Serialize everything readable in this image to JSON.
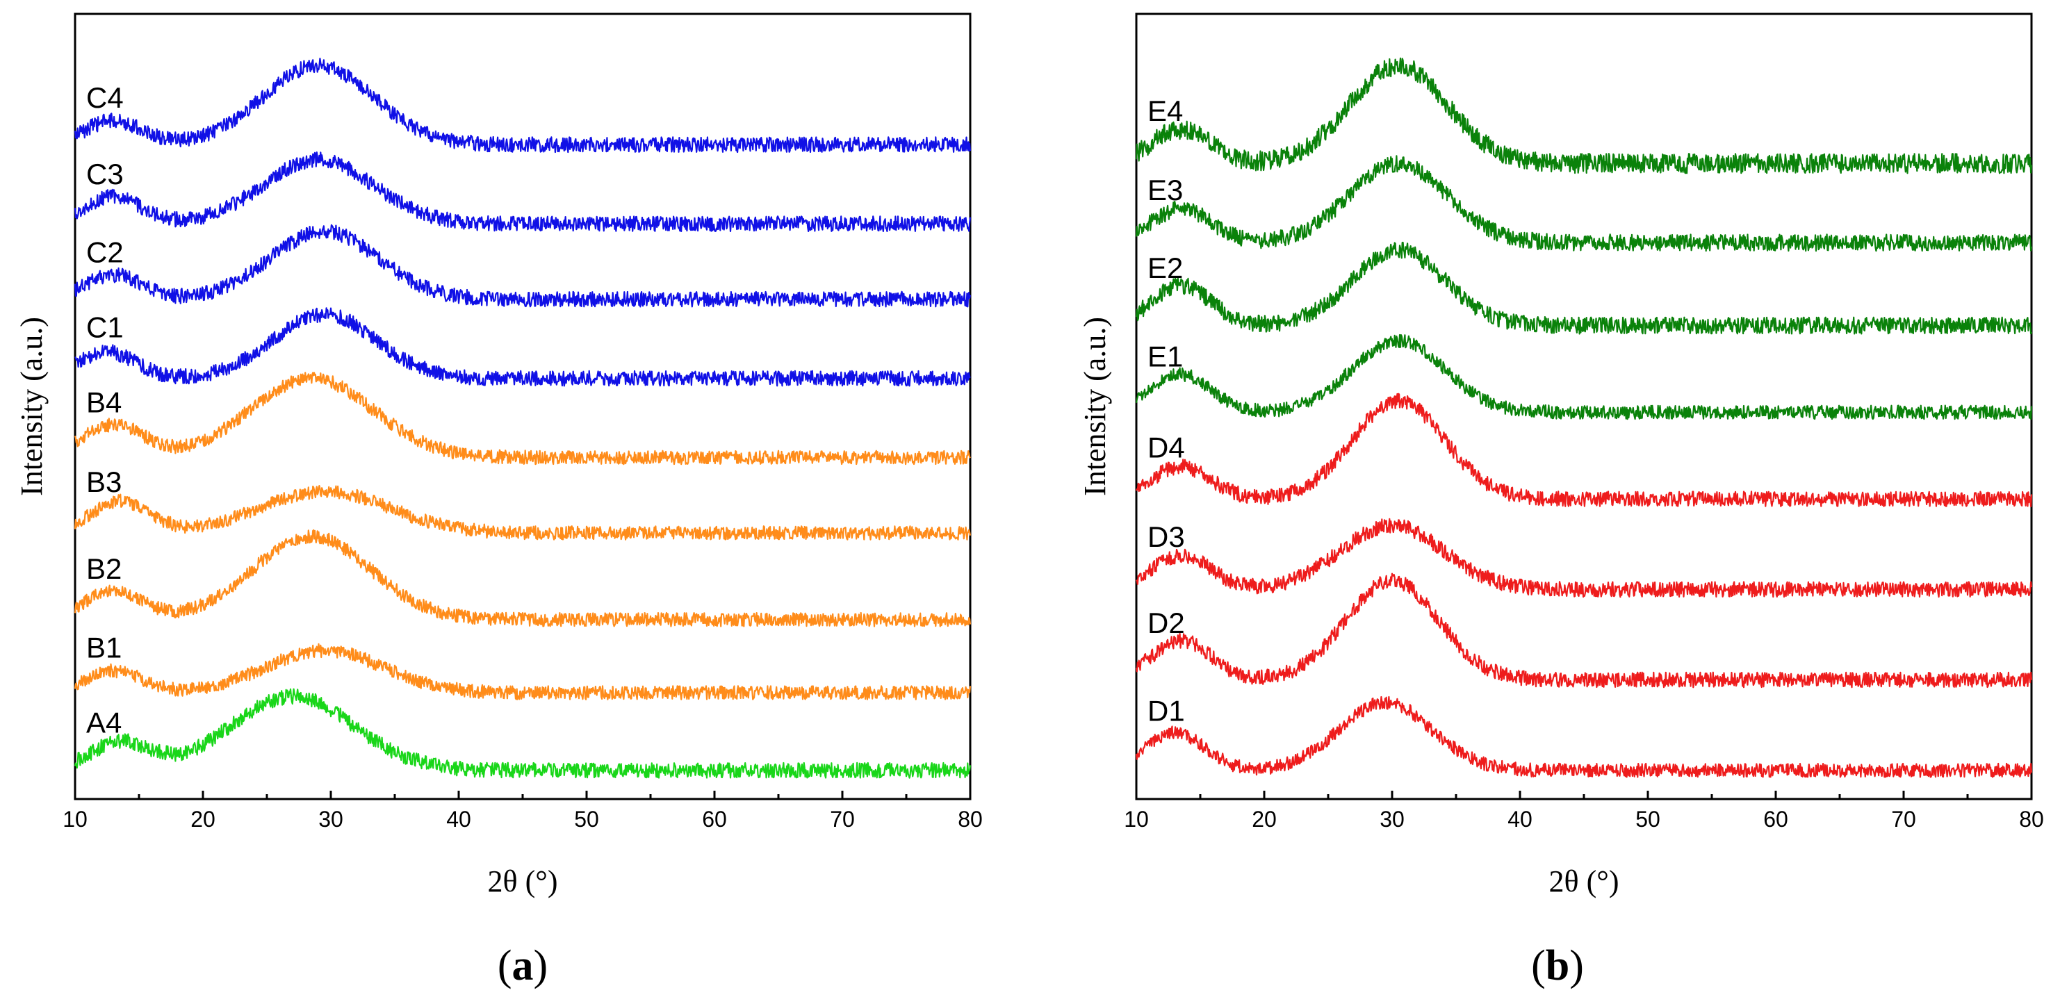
{
  "chart_data": [
    {
      "panel": "a",
      "type": "line",
      "caption_open": "(",
      "caption_letter": "a",
      "caption_close": ")",
      "xlabel": "2θ (°)",
      "ylabel": "Intensity (a.u.)",
      "xlim": [
        10,
        80
      ],
      "ylim": [
        0,
        100
      ],
      "xticks": [
        10,
        20,
        30,
        40,
        50,
        60,
        70,
        80
      ],
      "series": [
        {
          "name": "C4",
          "color": "#1010e6",
          "baseline": 84.5,
          "low_peak": {
            "center": 13,
            "height": 3.2,
            "width": 2.2
          },
          "main_peak": {
            "center": 29,
            "height": 10.5,
            "width": 4.3
          },
          "noise": 1.0
        },
        {
          "name": "C3",
          "color": "#1010e6",
          "baseline": 74.0,
          "low_peak": {
            "center": 13,
            "height": 3.6,
            "width": 2.2
          },
          "main_peak": {
            "center": 29,
            "height": 8.5,
            "width": 4.3
          },
          "noise": 1.0
        },
        {
          "name": "C2",
          "color": "#1010e6",
          "baseline": 64.0,
          "low_peak": {
            "center": 13,
            "height": 3.2,
            "width": 2.2
          },
          "main_peak": {
            "center": 29.5,
            "height": 9.0,
            "width": 4.2
          },
          "noise": 1.0
        },
        {
          "name": "C1",
          "color": "#1010e6",
          "baseline": 53.5,
          "low_peak": {
            "center": 12.5,
            "height": 3.5,
            "width": 2.2
          },
          "main_peak": {
            "center": 29.5,
            "height": 8.5,
            "width": 4.0
          },
          "noise": 1.0
        },
        {
          "name": "B4",
          "color": "#ff8c1a",
          "baseline": 43.0,
          "low_peak": {
            "center": 13,
            "height": 4.3,
            "width": 2.4
          },
          "main_peak": {
            "center": 28.5,
            "height": 10.5,
            "width": 4.8
          },
          "noise": 0.9
        },
        {
          "name": "B3",
          "color": "#ff8c1a",
          "baseline": 33.0,
          "low_peak": {
            "center": 13.5,
            "height": 4.2,
            "width": 2.3
          },
          "main_peak": {
            "center": 29.5,
            "height": 5.5,
            "width": 5.0
          },
          "noise": 0.9
        },
        {
          "name": "B2",
          "color": "#ff8c1a",
          "baseline": 21.5,
          "low_peak": {
            "center": 13,
            "height": 3.7,
            "width": 2.3
          },
          "main_peak": {
            "center": 28.5,
            "height": 11.0,
            "width": 4.6
          },
          "noise": 0.9
        },
        {
          "name": "B1",
          "color": "#ff8c1a",
          "baseline": 11.8,
          "low_peak": {
            "center": 13,
            "height": 2.9,
            "width": 2.2
          },
          "main_peak": {
            "center": 29.5,
            "height": 5.6,
            "width": 4.6
          },
          "noise": 0.9
        },
        {
          "name": "A4",
          "color": "#19d619",
          "baseline": 1.5,
          "low_peak": {
            "center": 13.5,
            "height": 3.7,
            "width": 2.3
          },
          "main_peak": {
            "center": 27,
            "height": 9.8,
            "width": 4.8
          },
          "noise": 1.0
        }
      ]
    },
    {
      "panel": "b",
      "type": "line",
      "caption_open": "(",
      "caption_letter": "b",
      "caption_close": ")",
      "xlabel": "2θ (°)",
      "ylabel": "Intensity (a.u.)",
      "xlim": [
        10,
        80
      ],
      "ylim": [
        0,
        100
      ],
      "xticks": [
        10,
        20,
        30,
        40,
        50,
        60,
        70,
        80
      ],
      "series": [
        {
          "name": "E4",
          "color": "#0a820a",
          "baseline": 82.0,
          "low_peak": {
            "center": 13.5,
            "height": 4.5,
            "width": 2.3
          },
          "main_peak": {
            "center": 30.5,
            "height": 13.0,
            "width": 3.8
          },
          "noise": 1.3
        },
        {
          "name": "E3",
          "color": "#0a820a",
          "baseline": 71.5,
          "low_peak": {
            "center": 13.5,
            "height": 4.5,
            "width": 2.3
          },
          "main_peak": {
            "center": 30.5,
            "height": 10.5,
            "width": 3.8
          },
          "noise": 1.1
        },
        {
          "name": "E2",
          "color": "#0a820a",
          "baseline": 60.5,
          "low_peak": {
            "center": 13.5,
            "height": 5.3,
            "width": 2.3
          },
          "main_peak": {
            "center": 30.5,
            "height": 10.0,
            "width": 3.6
          },
          "noise": 1.1
        },
        {
          "name": "E1",
          "color": "#0a820a",
          "baseline": 49.0,
          "low_peak": {
            "center": 13.5,
            "height": 5.0,
            "width": 2.3
          },
          "main_peak": {
            "center": 30.5,
            "height": 9.5,
            "width": 3.6
          },
          "noise": 0.9
        },
        {
          "name": "D4",
          "color": "#ee1c1c",
          "baseline": 37.5,
          "low_peak": {
            "center": 13.5,
            "height": 4.3,
            "width": 2.3
          },
          "main_peak": {
            "center": 30.5,
            "height": 13.0,
            "width": 3.6
          },
          "noise": 1.0
        },
        {
          "name": "D3",
          "color": "#ee1c1c",
          "baseline": 25.5,
          "low_peak": {
            "center": 13.5,
            "height": 4.5,
            "width": 2.3
          },
          "main_peak": {
            "center": 30,
            "height": 8.5,
            "width": 4.0
          },
          "noise": 1.0
        },
        {
          "name": "D2",
          "color": "#ee1c1c",
          "baseline": 13.5,
          "low_peak": {
            "center": 13.5,
            "height": 5.2,
            "width": 2.3
          },
          "main_peak": {
            "center": 30,
            "height": 13.2,
            "width": 3.6
          },
          "noise": 1.0
        },
        {
          "name": "D1",
          "color": "#ee1c1c",
          "baseline": 1.5,
          "low_peak": {
            "center": 13,
            "height": 5.0,
            "width": 2.3
          },
          "main_peak": {
            "center": 29.5,
            "height": 9.0,
            "width": 3.6
          },
          "noise": 0.9
        }
      ]
    }
  ]
}
